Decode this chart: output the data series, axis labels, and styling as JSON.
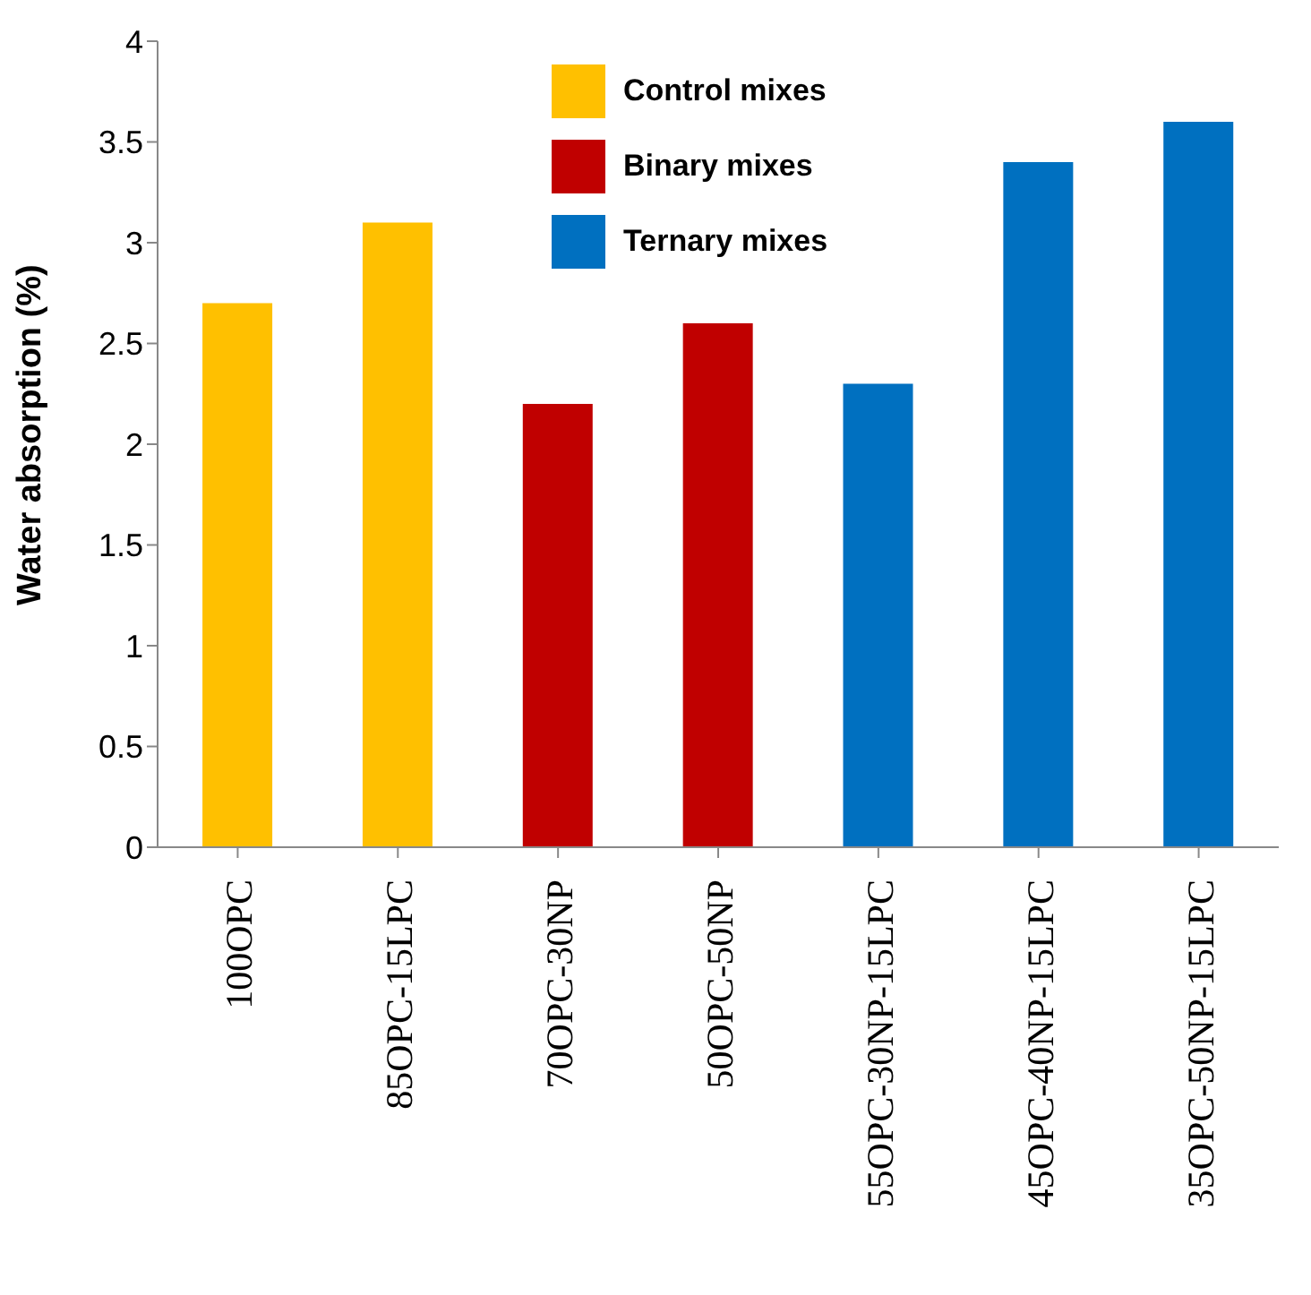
{
  "chart_data": {
    "type": "bar",
    "ylabel": "Water absorption (%)",
    "categories": [
      "100OPC",
      "85OPC-15LPC",
      "70OPC-30NP",
      "50OPC-50NP",
      "55OPC-30NP-15LPC",
      "45OPC-40NP-15LPC",
      "35OPC-50NP-15LPC"
    ],
    "series": [
      {
        "name": "Control mixes",
        "color": "#ffc000",
        "values": [
          2.7,
          3.1,
          null,
          null,
          null,
          null,
          null
        ]
      },
      {
        "name": "Binary mixes",
        "color": "#c00000",
        "values": [
          null,
          null,
          2.2,
          2.6,
          null,
          null,
          null
        ]
      },
      {
        "name": "Ternary mixes",
        "color": "#0070c0",
        "values": [
          null,
          null,
          null,
          null,
          2.3,
          3.4,
          3.6
        ]
      }
    ],
    "stacked": true,
    "ylim": [
      0,
      4
    ],
    "yticks": [
      0,
      0.5,
      1,
      1.5,
      2,
      2.5,
      3,
      3.5,
      4
    ],
    "grid": false,
    "legend": "top"
  }
}
